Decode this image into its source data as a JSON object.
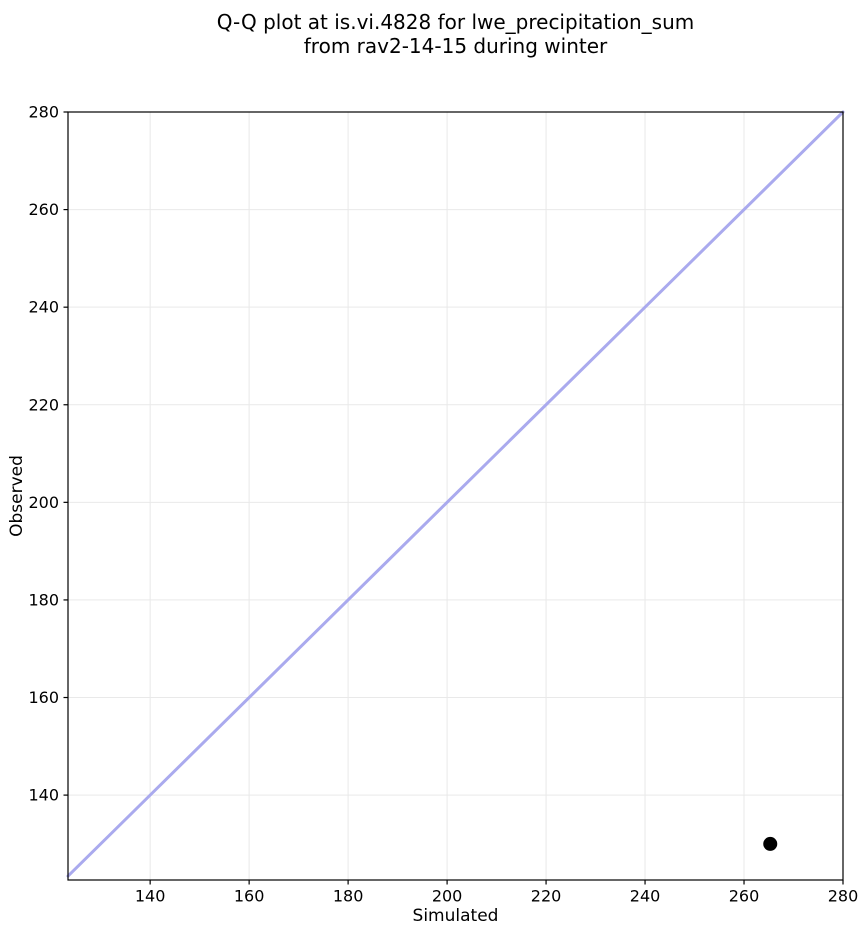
{
  "figure": {
    "title_line1": "Q-Q plot at is.vi.4828 for lwe_precipitation_sum",
    "title_line2": "from rav2-14-15 during winter",
    "xlabel": "Simulated",
    "ylabel": "Observed"
  },
  "chart_data": {
    "type": "scatter",
    "title": "Q-Q plot at is.vi.4828 for lwe_precipitation_sum\nfrom rav2-14-15 during winter",
    "xlabel": "Simulated",
    "ylabel": "Observed",
    "xlim": [
      123.4,
      280
    ],
    "ylim": [
      122.6,
      280
    ],
    "xticks": [
      140,
      160,
      180,
      200,
      220,
      240,
      260,
      280
    ],
    "yticks": [
      140,
      160,
      180,
      200,
      220,
      240,
      260,
      280
    ],
    "grid": true,
    "grid_color": "#e9e9e9",
    "spine_color": "#000000",
    "identity_line": {
      "from": 123.4,
      "to": 280,
      "color": "#aaaaee",
      "width": 3
    },
    "series": [
      {
        "name": "quantile-points",
        "marker": "circle",
        "color": "#000000",
        "radius": 7,
        "points": [
          {
            "x": 265.3,
            "y": 130
          }
        ]
      }
    ],
    "legend": null
  }
}
